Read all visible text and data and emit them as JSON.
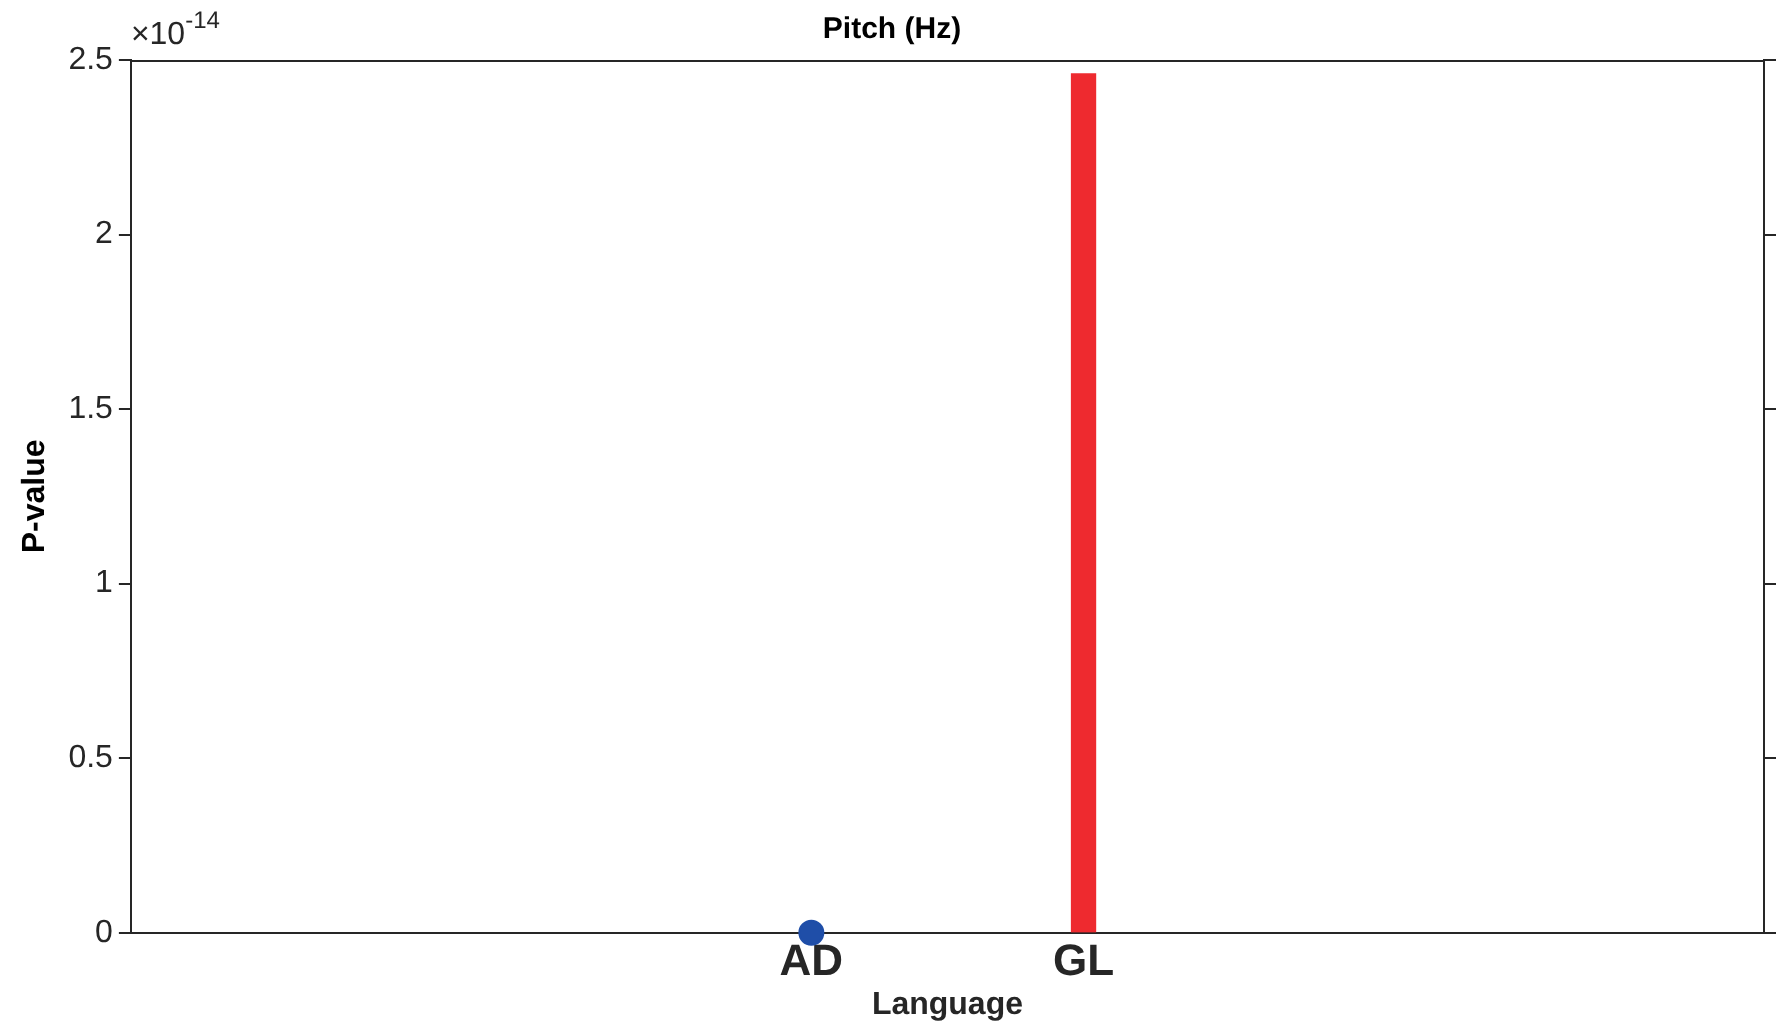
{
  "chart_data": {
    "type": "bar",
    "title": "Pitch (Hz)",
    "xlabel": "Language",
    "ylabel": "P-value",
    "categories": [
      "AD",
      "GL"
    ],
    "series": [
      {
        "type": "scatter",
        "color": "#1f4ea8",
        "values": [
          0,
          null
        ],
        "marker": "circle"
      },
      {
        "color": "#ee2a2f",
        "values": [
          null,
          2.46
        ]
      }
    ],
    "ylim": [
      0,
      2.5
    ],
    "yticks": [
      0,
      0.5,
      1,
      1.5,
      2,
      2.5
    ],
    "annotations": [
      "×10$^{-14}$"
    ],
    "grid": false,
    "legend": false
  }
}
